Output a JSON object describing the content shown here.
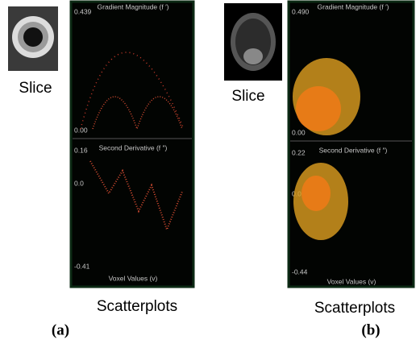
{
  "panels": [
    {
      "slice_label": "Slice",
      "plots": [
        {
          "title": "Gradient Magnitude (f ′)",
          "ticks": [
            "0.439",
            "0.00"
          ]
        },
        {
          "title": "Second Derivative (f ″)",
          "ticks": [
            "0.16",
            "0.0",
            "-0.41"
          ],
          "x_label": "Voxel Values (v)"
        }
      ],
      "caption": "Scatterplots",
      "label": "(a)"
    },
    {
      "slice_label": "Slice",
      "plots": [
        {
          "title": "Gradient Magnitude (f ′)",
          "ticks": [
            "0.490",
            "0.00"
          ]
        },
        {
          "title": "Second Derivative (f ″)",
          "ticks": [
            "0.22",
            "0.0",
            "-0.44"
          ],
          "x_label": "Voxel Values (v)"
        }
      ],
      "caption": "Scatterplots",
      "label": "(b)"
    }
  ]
}
